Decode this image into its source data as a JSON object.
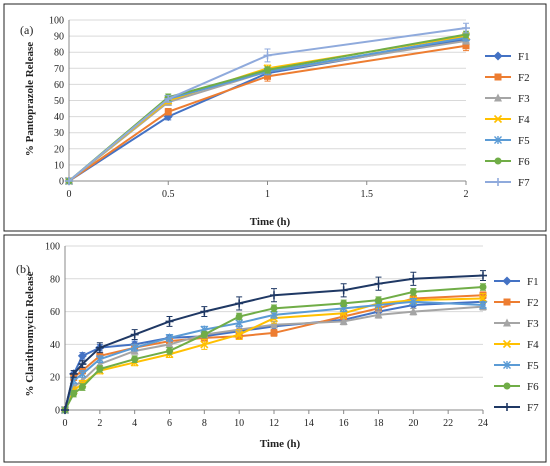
{
  "chart_data": [
    {
      "type": "line",
      "panel_label": "(a)",
      "xlabel": "Time (h)",
      "ylabel": "% Pantoprazole Release",
      "x": [
        0,
        0.5,
        1,
        2
      ],
      "xticks": [
        0,
        0.5,
        1,
        1.5,
        2
      ],
      "xtick_labels": [
        "0",
        "0.5",
        "1",
        "1.5",
        "2"
      ],
      "xlim": [
        0,
        2
      ],
      "ylim": [
        0,
        100
      ],
      "yticks": [
        0,
        10,
        20,
        30,
        40,
        50,
        60,
        70,
        80,
        90,
        100
      ],
      "grid": "horizontal",
      "legend_position": "right",
      "series": [
        {
          "name": "F1",
          "color": "#4472c4",
          "marker": "diamond",
          "values": [
            0,
            40,
            67,
            88
          ],
          "errors": [
            0,
            2,
            2,
            2
          ]
        },
        {
          "name": "F2",
          "color": "#ed7d31",
          "marker": "square",
          "values": [
            0,
            43,
            65,
            84
          ],
          "errors": [
            0,
            2,
            3,
            3
          ]
        },
        {
          "name": "F3",
          "color": "#a5a5a5",
          "marker": "triangle",
          "values": [
            0,
            49,
            68,
            87
          ],
          "errors": [
            0,
            2,
            2,
            2
          ]
        },
        {
          "name": "F4",
          "color": "#ffc000",
          "marker": "x",
          "values": [
            0,
            50,
            70,
            90
          ],
          "errors": [
            0,
            2,
            2,
            2
          ]
        },
        {
          "name": "F5",
          "color": "#5b9bd5",
          "marker": "asterisk",
          "values": [
            0,
            51,
            68,
            89
          ],
          "errors": [
            0,
            2,
            2,
            2
          ]
        },
        {
          "name": "F6",
          "color": "#70ad47",
          "marker": "circle",
          "values": [
            0,
            52,
            69,
            91
          ],
          "errors": [
            0,
            2,
            2,
            2
          ]
        },
        {
          "name": "F7",
          "color": "#8faadc",
          "marker": "plus",
          "values": [
            0,
            51,
            78,
            95
          ],
          "errors": [
            0,
            2,
            4,
            3
          ]
        }
      ]
    },
    {
      "type": "line",
      "panel_label": "(b)",
      "xlabel": "Time (h)",
      "ylabel": "% Clarithromycin Release",
      "x": [
        0,
        0.5,
        1,
        2,
        4,
        6,
        8,
        10,
        12,
        16,
        18,
        20,
        24
      ],
      "xticks": [
        0,
        2,
        4,
        6,
        8,
        10,
        12,
        14,
        16,
        18,
        20,
        22,
        24
      ],
      "xtick_labels": [
        "0",
        "2",
        "4",
        "6",
        "8",
        "10",
        "12",
        "14",
        "16",
        "18",
        "20",
        "22",
        "24"
      ],
      "xlim": [
        0,
        24
      ],
      "ylim": [
        0,
        100
      ],
      "yticks": [
        0,
        20,
        40,
        60,
        80,
        100
      ],
      "grid": "horizontal",
      "legend_position": "right",
      "series": [
        {
          "name": "F1",
          "color": "#4472c4",
          "marker": "diamond",
          "values": [
            0,
            22,
            33,
            38,
            40,
            44,
            45,
            48,
            51,
            55,
            60,
            64,
            66
          ],
          "errors": [
            0,
            2,
            2,
            2,
            2,
            2,
            2,
            2,
            2,
            2,
            2,
            2,
            2
          ]
        },
        {
          "name": "F2",
          "color": "#ed7d31",
          "marker": "square",
          "values": [
            0,
            20,
            24,
            33,
            38,
            42,
            44,
            45,
            47,
            57,
            62,
            68,
            70
          ],
          "errors": [
            0,
            2,
            2,
            2,
            2,
            2,
            2,
            2,
            2,
            2,
            2,
            2,
            2
          ]
        },
        {
          "name": "F3",
          "color": "#a5a5a5",
          "marker": "triangle",
          "values": [
            0,
            14,
            18,
            28,
            36,
            40,
            46,
            49,
            52,
            54,
            58,
            60,
            63
          ],
          "errors": [
            0,
            2,
            2,
            2,
            2,
            2,
            2,
            2,
            2,
            2,
            2,
            2,
            2
          ]
        },
        {
          "name": "F4",
          "color": "#ffc000",
          "marker": "x",
          "values": [
            0,
            12,
            16,
            24,
            29,
            34,
            40,
            46,
            56,
            59,
            65,
            67,
            68
          ],
          "errors": [
            0,
            2,
            2,
            2,
            2,
            2,
            3,
            3,
            3,
            3,
            3,
            3,
            3
          ]
        },
        {
          "name": "F5",
          "color": "#5b9bd5",
          "marker": "asterisk",
          "values": [
            0,
            18,
            22,
            31,
            38,
            44,
            49,
            53,
            58,
            62,
            64,
            66,
            64
          ],
          "errors": [
            0,
            2,
            2,
            2,
            2,
            2,
            2,
            2,
            2,
            2,
            3,
            2,
            2
          ]
        },
        {
          "name": "F6",
          "color": "#70ad47",
          "marker": "circle",
          "values": [
            0,
            10,
            14,
            25,
            31,
            36,
            46,
            57,
            62,
            65,
            67,
            72,
            75
          ],
          "errors": [
            0,
            2,
            2,
            2,
            2,
            2,
            2,
            2,
            2,
            2,
            2,
            2,
            2
          ]
        },
        {
          "name": "F7",
          "color": "#1f3864",
          "marker": "plus",
          "values": [
            0,
            22,
            28,
            38,
            46,
            54,
            60,
            65,
            70,
            73,
            77,
            80,
            82
          ],
          "errors": [
            0,
            2,
            2,
            3,
            3,
            3,
            3,
            4,
            4,
            4,
            4,
            4,
            3
          ]
        }
      ]
    }
  ]
}
